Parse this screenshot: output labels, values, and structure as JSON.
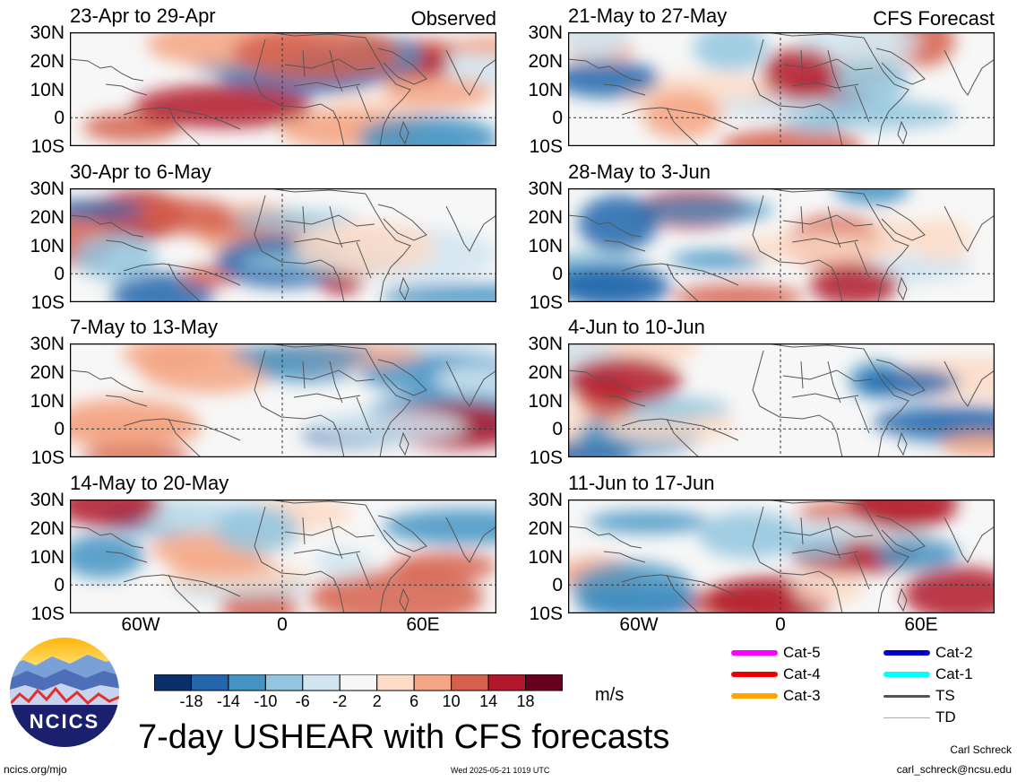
{
  "panels": [
    {
      "title": "23-Apr to 29-Apr",
      "tag": "Observed",
      "kind": "obs",
      "seed": 1
    },
    {
      "title": "21-May to 27-May",
      "tag": "CFS Forecast",
      "kind": "fc",
      "seed": 2
    },
    {
      "title": "30-Apr to 6-May",
      "tag": "",
      "kind": "obs",
      "seed": 3
    },
    {
      "title": "28-May to 3-Jun",
      "tag": "",
      "kind": "fc",
      "seed": 4
    },
    {
      "title": "7-May to 13-May",
      "tag": "",
      "kind": "obs",
      "seed": 5
    },
    {
      "title": "4-Jun to 10-Jun",
      "tag": "",
      "kind": "fc",
      "seed": 6
    },
    {
      "title": "14-May to 20-May",
      "tag": "",
      "kind": "obs",
      "seed": 7
    },
    {
      "title": "11-Jun to 17-Jun",
      "tag": "",
      "kind": "fc",
      "seed": 8
    }
  ],
  "lat_labels": [
    "30N",
    "20N",
    "10N",
    "0",
    "10S"
  ],
  "lon_labels": [
    "60W",
    "0",
    "60E"
  ],
  "colorbar": {
    "ticks": [
      "-18",
      "-14",
      "-10",
      "-6",
      "-2",
      "2",
      "6",
      "10",
      "14",
      "18"
    ],
    "unit": "m/s",
    "colors": [
      "#08306b",
      "#2166ac",
      "#4393c3",
      "#92c5de",
      "#d1e5f0",
      "#f7f7f7",
      "#fddbc7",
      "#f4a582",
      "#d6604d",
      "#b2182b",
      "#67001f"
    ]
  },
  "legend": [
    {
      "label": "Cat-5",
      "color": "#ff00ff",
      "style": "thick"
    },
    {
      "label": "Cat-4",
      "color": "#ee0000",
      "style": "thick"
    },
    {
      "label": "Cat-3",
      "color": "#ffa500",
      "style": "thick"
    },
    {
      "label": "Cat-2",
      "color": "#0000cc",
      "style": "thick"
    },
    {
      "label": "Cat-1",
      "color": "#00ffff",
      "style": "thick"
    },
    {
      "label": "TS",
      "color": "#555555",
      "style": "medium"
    },
    {
      "label": "TD",
      "color": "#aaaaaa",
      "style": "thin"
    }
  ],
  "logo": {
    "text": "NCICS"
  },
  "main_title": "7-day USHEAR with CFS forecasts",
  "footer": {
    "url": "ncics.org/mjo",
    "timestamp": "Wed 2025-05-21 1019 UTC",
    "author": "Carl Schreck",
    "email": "carl_schreck@ncsu.edu"
  }
}
